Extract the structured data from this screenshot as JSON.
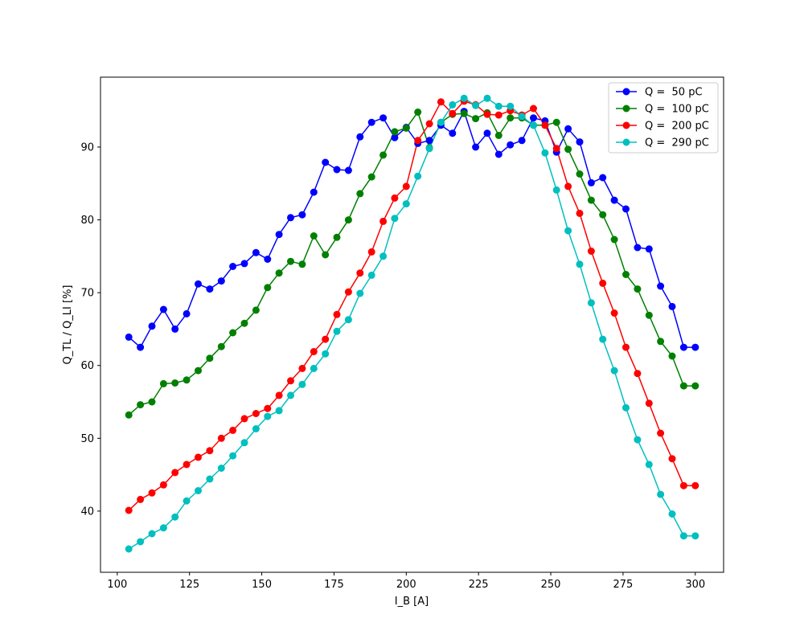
{
  "chart_data": {
    "type": "line",
    "title": "",
    "xlabel": "I_B [A]",
    "ylabel": "Q_TL / Q_LI  [%]",
    "xlim": [
      94.2,
      309.8
    ],
    "ylim": [
      31.6,
      99.6
    ],
    "xticks": [
      100,
      125,
      150,
      175,
      200,
      225,
      250,
      275,
      300
    ],
    "yticks": [
      40,
      50,
      60,
      70,
      80,
      90
    ],
    "grid": false,
    "legend_position": "top-right",
    "x": [
      104,
      108,
      112,
      116,
      120,
      124,
      128,
      132,
      136,
      140,
      144,
      148,
      152,
      156,
      160,
      164,
      168,
      172,
      176,
      180,
      184,
      188,
      192,
      196,
      200,
      204,
      208,
      212,
      216,
      220,
      224,
      228,
      232,
      236,
      240,
      244,
      248,
      252,
      256,
      260,
      264,
      268,
      272,
      276,
      280,
      284,
      288,
      292,
      296,
      300
    ],
    "series": [
      {
        "name": "Q =  50 pC",
        "color": "#0000ff",
        "values": [
          63.9,
          62.5,
          65.4,
          67.7,
          65.0,
          67.1,
          71.2,
          70.5,
          71.6,
          73.6,
          74.0,
          75.5,
          74.6,
          78.0,
          80.3,
          80.7,
          83.8,
          87.9,
          86.9,
          86.8,
          91.4,
          93.4,
          94.0,
          91.3,
          92.7,
          90.5,
          90.9,
          93.0,
          91.9,
          94.9,
          90.0,
          91.9,
          89.0,
          90.3,
          90.9,
          94.0,
          93.6,
          89.3,
          92.5,
          90.7,
          85.1,
          85.8,
          82.7,
          81.5,
          76.2,
          76.0,
          70.9,
          68.1,
          62.5,
          62.5
        ]
      },
      {
        "name": "Q =  100 pC",
        "color": "#008000",
        "values": [
          53.2,
          54.6,
          55.0,
          57.5,
          57.6,
          58.0,
          59.3,
          61.0,
          62.6,
          64.5,
          65.8,
          67.6,
          70.7,
          72.7,
          74.3,
          73.9,
          77.8,
          75.2,
          77.6,
          80.0,
          83.6,
          85.9,
          88.9,
          92.1,
          92.6,
          94.8,
          89.9,
          93.4,
          94.5,
          94.6,
          93.9,
          94.7,
          91.6,
          94.0,
          94.0,
          93.0,
          93.0,
          93.4,
          89.7,
          86.3,
          82.7,
          80.7,
          77.3,
          72.5,
          70.5,
          66.9,
          63.3,
          61.3,
          57.2,
          57.2
        ]
      },
      {
        "name": "Q =  200 pC",
        "color": "#ff0000",
        "values": [
          40.1,
          41.6,
          42.5,
          43.6,
          45.3,
          46.4,
          47.4,
          48.3,
          50.0,
          51.1,
          52.7,
          53.4,
          54.1,
          55.9,
          57.9,
          59.6,
          61.9,
          63.6,
          67.0,
          70.1,
          72.7,
          75.6,
          79.8,
          83.0,
          84.6,
          90.9,
          93.2,
          96.2,
          94.6,
          96.3,
          95.8,
          94.5,
          94.4,
          95.0,
          94.4,
          95.3,
          93.0,
          89.8,
          84.6,
          80.9,
          75.7,
          71.3,
          67.2,
          62.5,
          58.9,
          54.8,
          50.7,
          47.2,
          43.5,
          43.5
        ]
      },
      {
        "name": "Q =  290 pC",
        "color": "#00bfbf",
        "values": [
          34.8,
          35.8,
          36.9,
          37.7,
          39.2,
          41.4,
          42.8,
          44.4,
          45.9,
          47.6,
          49.4,
          51.3,
          53.0,
          53.8,
          55.9,
          57.4,
          59.6,
          61.6,
          64.7,
          66.3,
          69.9,
          72.4,
          75.0,
          80.2,
          82.2,
          86.0,
          89.8,
          93.4,
          95.8,
          96.7,
          95.7,
          96.7,
          95.6,
          95.6,
          94.2,
          93.0,
          89.2,
          84.1,
          78.5,
          73.9,
          68.6,
          63.6,
          59.3,
          54.2,
          49.8,
          46.4,
          42.3,
          39.6,
          36.6,
          36.6
        ]
      }
    ]
  }
}
